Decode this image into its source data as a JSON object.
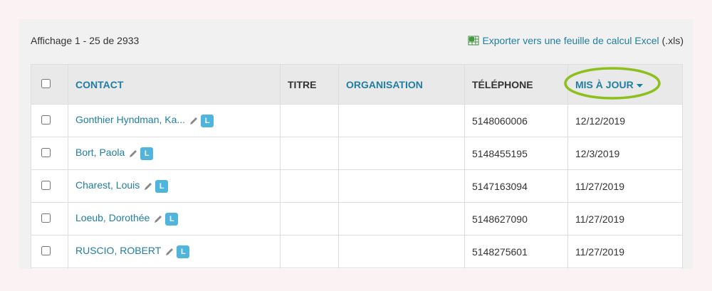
{
  "header": {
    "count_text": "Affichage 1 - 25 de 2933"
  },
  "export": {
    "link_text": "Exporter vers une feuille de calcul Excel",
    "suffix": "(.xls)"
  },
  "table": {
    "columns": [
      "CONTACT",
      "TITRE",
      "ORGANISATION",
      "TÉLÉPHONE",
      "MIS À JOUR"
    ],
    "rows": [
      {
        "contact": "Gonthier Hyndman, Ka...",
        "badge": "L",
        "phone": "5148060006",
        "updated": "12/12/2019"
      },
      {
        "contact": "Bort, Paola",
        "badge": "L",
        "phone": "5148455195",
        "updated": "12/3/2019"
      },
      {
        "contact": "Charest, Louis",
        "badge": "L",
        "phone": "5147163094",
        "updated": "11/27/2019"
      },
      {
        "contact": "Loeub, Dorothée",
        "badge": "L",
        "phone": "5148627090",
        "updated": "11/27/2019"
      },
      {
        "contact": "RUSCIO, ROBERT",
        "badge": "L",
        "phone": "5148275601",
        "updated": "11/27/2019"
      }
    ]
  }
}
